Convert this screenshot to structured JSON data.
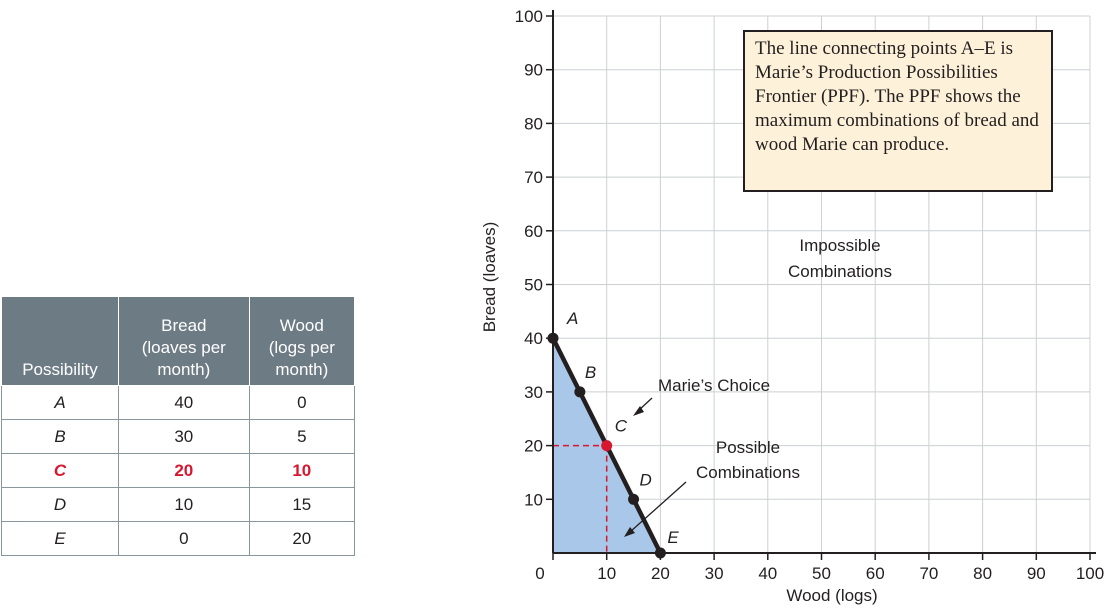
{
  "table": {
    "headers": {
      "possibility": "Possibility",
      "bread": [
        "Bread",
        "(loaves per",
        "month)"
      ],
      "wood": [
        "Wood",
        "(logs per",
        "month)"
      ]
    },
    "rows": [
      {
        "possibility": "A",
        "bread": "40",
        "wood": "0",
        "highlight": false
      },
      {
        "possibility": "B",
        "bread": "30",
        "wood": "5",
        "highlight": false
      },
      {
        "possibility": "C",
        "bread": "20",
        "wood": "10",
        "highlight": true
      },
      {
        "possibility": "D",
        "bread": "10",
        "wood": "15",
        "highlight": false
      },
      {
        "possibility": "E",
        "bread": "0",
        "wood": "20",
        "highlight": false
      }
    ]
  },
  "chart_data": {
    "type": "line",
    "xlabel": "Wood (logs)",
    "ylabel": "Bread (loaves)",
    "xlim": [
      0,
      100
    ],
    "ylim": [
      0,
      100
    ],
    "xticks": [
      0,
      10,
      20,
      30,
      40,
      50,
      60,
      70,
      80,
      90,
      100
    ],
    "yticks": [
      10,
      20,
      30,
      40,
      50,
      60,
      70,
      80,
      90,
      100
    ],
    "grid": true,
    "points": [
      {
        "label": "A",
        "x": 0,
        "y": 40
      },
      {
        "label": "B",
        "x": 5,
        "y": 30
      },
      {
        "label": "C",
        "x": 10,
        "y": 20
      },
      {
        "label": "D",
        "x": 15,
        "y": 10
      },
      {
        "label": "E",
        "x": 20,
        "y": 0
      }
    ],
    "chosen_point": "C",
    "chosen_labels": {
      "x": "10",
      "y": "20"
    },
    "annotations": {
      "impossible": [
        "Impossible",
        "Combinations"
      ],
      "possible": [
        "Possible",
        "Combinations"
      ],
      "choice": "Marie’s Choice"
    },
    "note": "The line connecting points A–E is Marie’s Production Possibilities Frontier (PPF). The PPF shows the maximum combinations of bread and wood Marie can produce."
  },
  "colors": {
    "line": "#231f20",
    "highlight": "#d7172f",
    "possible_fill": "#a9c7e8",
    "grid": "#ccd0d3",
    "note_bg": "#fdf1d9",
    "table_header": "#6d7b84"
  }
}
